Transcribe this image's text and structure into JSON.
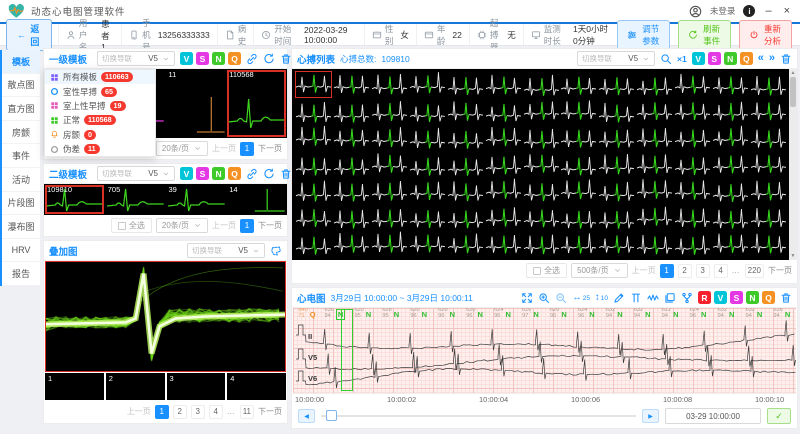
{
  "colors": {
    "accent": "#1890ff",
    "badge": "#f5392f",
    "selected_red": "#d93025",
    "wave_green": "#3ed41e",
    "ecg_grid": "#f3c4bf"
  },
  "titlebar": {
    "app_title": "动态心电图管理软件",
    "user_label": "未登录",
    "info": "i",
    "minimize": "–",
    "close": "×"
  },
  "patient_bar": {
    "back_label": "返回",
    "back_arrow": "←",
    "fields": [
      {
        "label": "用户名",
        "value": "患者1",
        "icon": "person-icon"
      },
      {
        "label": "手机号",
        "value": "13256333333",
        "icon": "phone-icon"
      },
      {
        "label": "病史",
        "value": "",
        "icon": "file-icon"
      },
      {
        "label": "开始时间",
        "value": "2022-03-29 10:00:00",
        "icon": "clock-icon"
      },
      {
        "label": "性别",
        "value": "女",
        "icon": "card-icon"
      },
      {
        "label": "年龄",
        "value": "22",
        "icon": "card-icon"
      },
      {
        "label": "起搏器",
        "value": "无",
        "icon": "chip-icon"
      },
      {
        "label": "监测时长",
        "value": "1天0小时0分钟",
        "icon": "monitor-icon"
      }
    ],
    "actions": [
      {
        "label": "调节参数",
        "kind": "blue",
        "icon": "tune-icon",
        "name": "adjust-params-button"
      },
      {
        "label": "刷新事件",
        "kind": "green",
        "icon": "refresh-icon",
        "name": "refresh-events-button"
      },
      {
        "label": "重新分析",
        "kind": "red",
        "icon": "power-icon",
        "name": "reanalyze-button"
      }
    ]
  },
  "sidebar": {
    "items": [
      {
        "label": "模板",
        "active": true
      },
      {
        "label": "散点图",
        "active": false
      },
      {
        "label": "直方图",
        "active": false
      },
      {
        "label": "房颤",
        "active": false
      },
      {
        "label": "事件",
        "active": false
      },
      {
        "label": "活动",
        "active": false
      },
      {
        "label": "片段图",
        "active": false
      },
      {
        "label": "瀑布图",
        "active": false
      },
      {
        "label": "HRV",
        "active": false
      },
      {
        "label": "报告",
        "active": false
      }
    ]
  },
  "lead_select": {
    "placeholder": "切换导联",
    "value": "V5"
  },
  "type_buttons": [
    {
      "label": "V",
      "color": "#00c4d8"
    },
    {
      "label": "S",
      "color": "#e438e4"
    },
    {
      "label": "N",
      "color": "#3ecb2a"
    },
    {
      "label": "Q",
      "color": "#f59122"
    }
  ],
  "template1": {
    "title": "一级模板",
    "thumbnails": [
      {
        "count": "65",
        "color": "#23c8bc",
        "shape": "vbeat",
        "selected": false
      },
      {
        "count": "19",
        "color": "#e438e4",
        "shape": "sbeat",
        "selected": false
      },
      {
        "count": "11",
        "color": "#bf7a30",
        "shape": "spike",
        "selected": false
      },
      {
        "count": "110568",
        "color": "#3ed41e",
        "shape": "nbeat",
        "selected": true
      }
    ],
    "menu": [
      {
        "label": "所有模板",
        "count": "110663",
        "icon": "grid-icon",
        "color": "#7c5cff",
        "active": true
      },
      {
        "label": "室性早搏",
        "count": "65",
        "icon": "circle-icon",
        "color": "#1890ff",
        "active": false
      },
      {
        "label": "室上性早搏",
        "count": "19",
        "icon": "grid-icon",
        "color": "#e85abc",
        "active": false
      },
      {
        "label": "正常",
        "count": "110568",
        "icon": "grid-icon",
        "color": "#3ecb2a",
        "active": false
      },
      {
        "label": "房颤",
        "count": "0",
        "icon": "bell-icon",
        "color": "#f59122",
        "active": false
      },
      {
        "label": "伪差",
        "count": "11",
        "icon": "circle-icon",
        "color": "#9e9e9e",
        "active": false
      }
    ],
    "pagination": {
      "select_all": "全选",
      "page_size": "20条/页",
      "prev": "上一页",
      "next": "下一页",
      "pages": [
        "1"
      ],
      "active": "1"
    }
  },
  "template2": {
    "title": "二级模板",
    "thumbnails": [
      {
        "count": "109810",
        "color": "#3ed41e",
        "shape": "nbeat",
        "selected": true
      },
      {
        "count": "705",
        "color": "#3ed41e",
        "shape": "nbeat",
        "selected": false
      },
      {
        "count": "39",
        "color": "#3ed41e",
        "shape": "nbeat",
        "selected": false
      },
      {
        "count": "14",
        "color": "#3ed41e",
        "shape": "spike",
        "selected": false
      }
    ],
    "pagination": {
      "select_all": "全选",
      "page_size": "20条/页",
      "prev": "上一页",
      "next": "下一页",
      "pages": [
        "1"
      ],
      "active": "1"
    }
  },
  "overlay_panel": {
    "title": "叠加图",
    "groups": [
      "1",
      "2",
      "3",
      "4"
    ],
    "pagination": {
      "prev": "上一页",
      "next": "下一页",
      "pages": [
        "1",
        "2",
        "3",
        "4",
        "…",
        "11"
      ],
      "active": "1"
    }
  },
  "beat_list": {
    "title": "心搏列表",
    "total_label": "心搏总数:",
    "total": "109810",
    "scale_label": "×1",
    "prev_label": "«",
    "next_label": "»",
    "grid": {
      "cols": 13,
      "rows": 7
    },
    "pagination": {
      "select_all": "全选",
      "page_size": "500条/页",
      "prev": "上一页",
      "next": "下一页",
      "pages": [
        "1",
        "2",
        "3",
        "4",
        "…",
        "220"
      ],
      "active": "1"
    }
  },
  "ecg_panel": {
    "title": "心电图",
    "range": "3月29日 10:00:00 ~ 3月29日 10:00:11",
    "h_scale": "25",
    "v_scale": "10",
    "markers": [
      {
        "label": "R",
        "color": "#f5222d"
      },
      {
        "label": "V",
        "color": "#00c4d8"
      },
      {
        "label": "S",
        "color": "#e438e4"
      },
      {
        "label": "N",
        "color": "#3ecb2a"
      },
      {
        "label": "Q",
        "color": "#f59122"
      }
    ],
    "leads": [
      "II",
      "V5",
      "V6"
    ],
    "annotations": [
      {
        "rr": "840",
        "hr": "71",
        "t": "Q",
        "sel": false
      },
      {
        "rr": "636",
        "hr": "94",
        "t": "N",
        "sel": true
      },
      {
        "rr": "620",
        "hr": "95",
        "t": "N",
        "sel": false
      },
      {
        "rr": "628",
        "hr": "95",
        "t": "N",
        "sel": false
      },
      {
        "rr": "620",
        "hr": "96",
        "t": "N",
        "sel": false
      },
      {
        "rr": "620",
        "hr": "96",
        "t": "N",
        "sel": false
      },
      {
        "rr": "620",
        "hr": "96",
        "t": "N",
        "sel": false
      },
      {
        "rr": "624",
        "hr": "96",
        "t": "N",
        "sel": false
      },
      {
        "rr": "616",
        "hr": "97",
        "t": "N",
        "sel": false
      },
      {
        "rr": "620",
        "hr": "96",
        "t": "N",
        "sel": false
      },
      {
        "rr": "624",
        "hr": "96",
        "t": "N",
        "sel": false
      },
      {
        "rr": "632",
        "hr": "94",
        "t": "N",
        "sel": false
      },
      {
        "rr": "632",
        "hr": "94",
        "t": "N",
        "sel": false
      },
      {
        "rr": "612",
        "hr": "94",
        "t": "N",
        "sel": false
      },
      {
        "rr": "624",
        "hr": "96",
        "t": "N",
        "sel": false
      },
      {
        "rr": "632",
        "hr": "94",
        "t": "N",
        "sel": false
      },
      {
        "rr": "632",
        "hr": "94",
        "t": "N",
        "sel": false
      },
      {
        "rr": "636",
        "hr": "94",
        "t": "N",
        "sel": false
      }
    ],
    "time_labels": [
      "10:00:00",
      "10:00:02",
      "10:00:04",
      "10:00:06",
      "10:00:08",
      "10:00:10"
    ],
    "jump_value": "03-29 10:00:00",
    "confirm_label": "✓"
  }
}
